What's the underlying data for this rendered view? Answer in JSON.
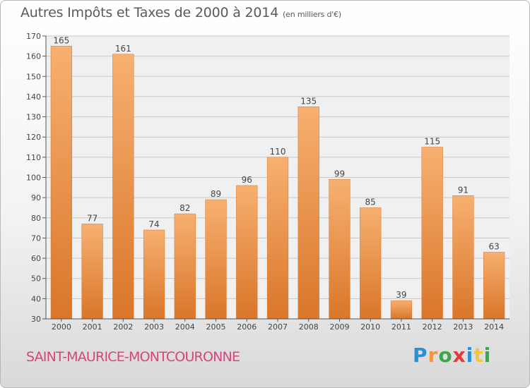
{
  "header": {
    "title": "Autres Impôts et Taxes de 2000 à 2014",
    "subtitle": "(en milliers d'€)"
  },
  "footer": {
    "commune": "SAINT-MAURICE-MONTCOURONNE",
    "logo_letters": [
      "P",
      "r",
      "o",
      "x",
      "i",
      "t",
      "i"
    ]
  },
  "colors": {
    "bar": "#f2953f",
    "bar_light": "#f7b070",
    "bar_dark": "#d9762a",
    "commune": "#d8447c",
    "logo": [
      "#2a8fd6",
      "#f2953f",
      "#3aa84a",
      "#e23a3a",
      "#2a8fd6",
      "#f2c53a",
      "#3aa84a"
    ]
  },
  "chart_data": {
    "type": "bar",
    "title": "Autres Impôts et Taxes de 2000 à 2014",
    "subtitle": "(en milliers d'€)",
    "xlabel": "",
    "ylabel": "",
    "categories": [
      "2000",
      "2001",
      "2002",
      "2003",
      "2004",
      "2005",
      "2006",
      "2007",
      "2008",
      "2009",
      "2010",
      "2011",
      "2012",
      "2013",
      "2014"
    ],
    "values": [
      165,
      77,
      161,
      74,
      82,
      89,
      96,
      110,
      135,
      99,
      85,
      39,
      115,
      91,
      63
    ],
    "ylim": [
      30,
      170
    ],
    "yticks": [
      30,
      40,
      50,
      60,
      70,
      80,
      90,
      100,
      110,
      120,
      130,
      140,
      150,
      160,
      170
    ],
    "grid": true,
    "data_labels": true
  }
}
